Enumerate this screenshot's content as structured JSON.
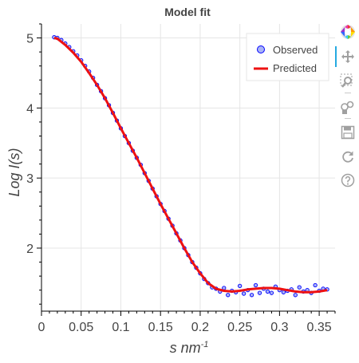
{
  "chart_data": {
    "type": "scatter",
    "title": "Model fit",
    "xlabel": "s nm",
    "xlabel_superscript": "-1",
    "ylabel": "Log I(s)",
    "xlim": [
      0,
      0.37
    ],
    "ylim": [
      1.1,
      5.2
    ],
    "x_ticks": [
      0,
      0.05,
      0.1,
      0.15,
      0.2,
      0.25,
      0.3,
      0.35
    ],
    "x_tick_labels": [
      "0",
      "0.05",
      "0.1",
      "0.15",
      "0.2",
      "0.25",
      "0.3",
      "0.35"
    ],
    "y_ticks": [
      2,
      3,
      4,
      5
    ],
    "y_tick_labels": [
      "2",
      "3",
      "4",
      "5"
    ],
    "grid": true,
    "legend_position": "top-right",
    "series": [
      {
        "name": "Observed",
        "kind": "scatter",
        "color": "#0000ff",
        "fill": "#a9b4f5",
        "x": [
          0.016,
          0.02,
          0.025,
          0.03,
          0.035,
          0.04,
          0.045,
          0.05,
          0.055,
          0.06,
          0.065,
          0.07,
          0.075,
          0.08,
          0.085,
          0.09,
          0.095,
          0.1,
          0.105,
          0.11,
          0.115,
          0.12,
          0.125,
          0.13,
          0.135,
          0.14,
          0.145,
          0.15,
          0.155,
          0.16,
          0.165,
          0.17,
          0.175,
          0.18,
          0.185,
          0.19,
          0.195,
          0.2,
          0.205,
          0.21,
          0.215,
          0.22,
          0.225,
          0.23,
          0.235,
          0.24,
          0.245,
          0.25,
          0.255,
          0.26,
          0.265,
          0.27,
          0.275,
          0.28,
          0.285,
          0.29,
          0.295,
          0.3,
          0.305,
          0.31,
          0.315,
          0.32,
          0.325,
          0.33,
          0.335,
          0.34,
          0.345,
          0.35,
          0.355,
          0.36
        ],
        "y": [
          5.01,
          5.0,
          4.97,
          4.92,
          4.87,
          4.81,
          4.75,
          4.68,
          4.6,
          4.52,
          4.43,
          4.33,
          4.24,
          4.14,
          4.04,
          3.93,
          3.82,
          3.71,
          3.6,
          3.5,
          3.39,
          3.29,
          3.19,
          3.07,
          2.96,
          2.85,
          2.74,
          2.63,
          2.53,
          2.42,
          2.32,
          2.21,
          2.11,
          2.0,
          1.9,
          1.8,
          1.72,
          1.64,
          1.56,
          1.5,
          1.44,
          1.42,
          1.38,
          1.43,
          1.33,
          1.39,
          1.37,
          1.46,
          1.35,
          1.4,
          1.33,
          1.47,
          1.36,
          1.42,
          1.38,
          1.36,
          1.45,
          1.4,
          1.37,
          1.39,
          1.41,
          1.33,
          1.44,
          1.38,
          1.4,
          1.36,
          1.47,
          1.39,
          1.42,
          1.41
        ]
      },
      {
        "name": "Predicted",
        "kind": "line",
        "color": "#ee1111",
        "x": [
          0.016,
          0.02,
          0.03,
          0.04,
          0.05,
          0.06,
          0.07,
          0.08,
          0.09,
          0.1,
          0.11,
          0.12,
          0.13,
          0.14,
          0.15,
          0.16,
          0.17,
          0.18,
          0.19,
          0.2,
          0.21,
          0.22,
          0.23,
          0.24,
          0.25,
          0.26,
          0.27,
          0.28,
          0.29,
          0.3,
          0.31,
          0.32,
          0.33,
          0.34,
          0.35,
          0.36
        ],
        "y": [
          5.0,
          4.99,
          4.9,
          4.79,
          4.66,
          4.5,
          4.33,
          4.14,
          3.93,
          3.71,
          3.5,
          3.29,
          3.07,
          2.85,
          2.63,
          2.42,
          2.21,
          2.0,
          1.8,
          1.64,
          1.5,
          1.42,
          1.39,
          1.38,
          1.39,
          1.41,
          1.42,
          1.43,
          1.43,
          1.42,
          1.4,
          1.38,
          1.37,
          1.37,
          1.38,
          1.4
        ]
      }
    ]
  },
  "toolbar": {
    "tools": [
      {
        "icon": "bokeh-logo-icon",
        "label": "Bokeh"
      },
      {
        "icon": "pan-icon",
        "label": "Pan"
      },
      {
        "icon": "box-zoom-icon",
        "label": "Box Zoom"
      },
      {
        "icon": "wheel-zoom-icon",
        "label": "Wheel Zoom"
      },
      {
        "icon": "save-icon",
        "label": "Save"
      },
      {
        "icon": "reset-icon",
        "label": "Reset"
      },
      {
        "icon": "help-icon",
        "label": "Help"
      }
    ]
  }
}
